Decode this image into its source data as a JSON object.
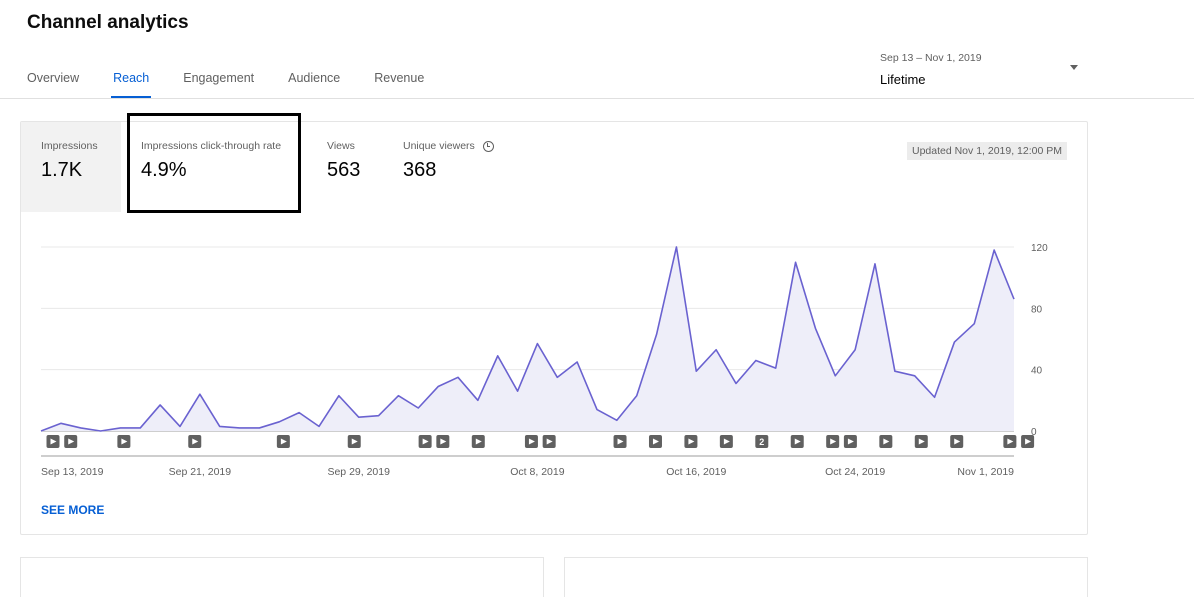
{
  "header": {
    "title": "Channel analytics"
  },
  "tabs": [
    {
      "label": "Overview",
      "active": false
    },
    {
      "label": "Reach",
      "active": true
    },
    {
      "label": "Engagement",
      "active": false
    },
    {
      "label": "Audience",
      "active": false
    },
    {
      "label": "Revenue",
      "active": false
    }
  ],
  "date_picker": {
    "range": "Sep 13 – Nov 1, 2019",
    "label": "Lifetime"
  },
  "metrics": [
    {
      "label": "Impressions",
      "value": "1.7K",
      "selected": true
    },
    {
      "label": "Impressions click-through rate",
      "value": "4.9%",
      "selected": false
    },
    {
      "label": "Views",
      "value": "563",
      "selected": false
    },
    {
      "label": "Unique viewers",
      "value": "368",
      "selected": false,
      "icon": "info-icon"
    }
  ],
  "updated": "Updated Nov 1, 2019, 12:00 PM",
  "see_more": "SEE MORE",
  "colors": {
    "accent": "#065fd4",
    "line": "#6a62d0",
    "fill": "#eeeef9",
    "highlight": "#000000"
  },
  "chart_data": {
    "type": "area",
    "x_tick_labels": [
      "Sep 13, 2019",
      "Sep 21, 2019",
      "Sep 29, 2019",
      "Oct 8, 2019",
      "Oct 16, 2019",
      "Oct 24, 2019",
      "Nov 1, 2019"
    ],
    "y_ticks": [
      0,
      40,
      80,
      120
    ],
    "ylim": [
      0,
      120
    ],
    "grid": true,
    "series": [
      {
        "values": [
          0,
          5,
          2,
          0,
          2,
          2,
          17,
          3,
          24,
          3,
          2,
          2,
          6,
          12,
          3,
          23,
          9,
          10,
          23,
          15,
          29,
          35,
          20,
          49,
          26,
          57,
          35,
          45,
          14,
          7,
          23,
          63,
          120,
          39,
          53,
          31,
          46,
          41,
          110,
          67,
          36,
          53,
          109,
          39,
          36,
          22,
          58,
          70,
          118,
          86
        ]
      }
    ],
    "video_markers": [
      {
        "day": 1,
        "label": ""
      },
      {
        "day": 2,
        "label": ""
      },
      {
        "day": 5,
        "label": ""
      },
      {
        "day": 9,
        "label": ""
      },
      {
        "day": 14,
        "label": ""
      },
      {
        "day": 18,
        "label": ""
      },
      {
        "day": 22,
        "label": ""
      },
      {
        "day": 23,
        "label": ""
      },
      {
        "day": 25,
        "label": ""
      },
      {
        "day": 28,
        "label": ""
      },
      {
        "day": 29,
        "label": ""
      },
      {
        "day": 33,
        "label": ""
      },
      {
        "day": 35,
        "label": ""
      },
      {
        "day": 37,
        "label": ""
      },
      {
        "day": 39,
        "label": ""
      },
      {
        "day": 41,
        "label": "2"
      },
      {
        "day": 43,
        "label": ""
      },
      {
        "day": 45,
        "label": ""
      },
      {
        "day": 46,
        "label": ""
      },
      {
        "day": 48,
        "label": ""
      },
      {
        "day": 50,
        "label": ""
      },
      {
        "day": 52,
        "label": ""
      },
      {
        "day": 55,
        "label": ""
      },
      {
        "day": 56,
        "label": ""
      }
    ]
  }
}
